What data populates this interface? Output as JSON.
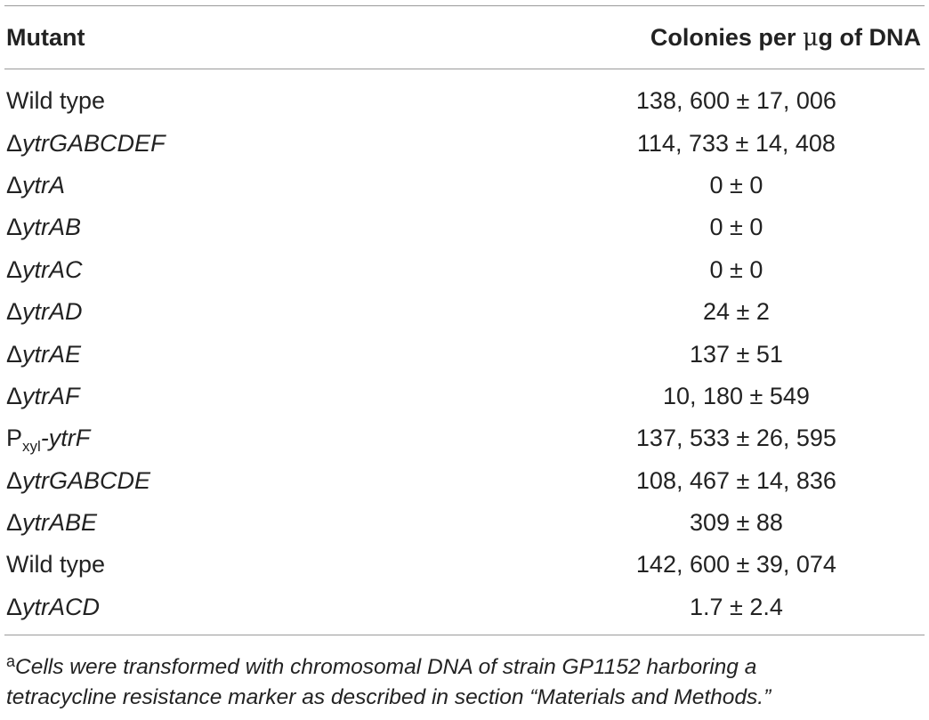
{
  "table": {
    "headers": {
      "mutant": "Mutant",
      "colonies_prefix": "Colonies per ",
      "colonies_mu": "μ",
      "colonies_suffix": "g of DNA"
    },
    "rows": [
      {
        "prefix": "",
        "name": "Wild type",
        "italic": false,
        "value": "138, 600 ± 17, 006"
      },
      {
        "prefix": "Δ",
        "name": "ytrGABCDEF",
        "italic": true,
        "value": "114, 733 ± 14, 408"
      },
      {
        "prefix": "Δ",
        "name": "ytrA",
        "italic": true,
        "value": "0 ± 0"
      },
      {
        "prefix": "Δ",
        "name": "ytrAB",
        "italic": true,
        "value": "0 ± 0"
      },
      {
        "prefix": "Δ",
        "name": "ytrAC",
        "italic": true,
        "value": "0 ± 0"
      },
      {
        "prefix": "Δ",
        "name": "ytrAD",
        "italic": true,
        "value": "24 ± 2"
      },
      {
        "prefix": "Δ",
        "name": "ytrAE",
        "italic": true,
        "value": "137 ± 51"
      },
      {
        "prefix": "Δ",
        "name": "ytrAF",
        "italic": true,
        "value": "10, 180 ± 549"
      },
      {
        "prefix": "P",
        "sub": "xyl",
        "name": "-ytrF",
        "italic": true,
        "value": "137, 533 ± 26, 595"
      },
      {
        "prefix": "Δ",
        "name": "ytrGABCDE",
        "italic": true,
        "value": "108, 467 ± 14, 836"
      },
      {
        "prefix": "Δ",
        "name": "ytrABE",
        "italic": true,
        "value": "309 ± 88"
      },
      {
        "prefix": "",
        "name": "Wild type",
        "italic": false,
        "value": "142, 600 ± 39, 074"
      },
      {
        "prefix": "Δ",
        "name": "ytrACD",
        "italic": true,
        "value": "1.7 ± 2.4"
      }
    ]
  },
  "footnote": {
    "marker": "a",
    "line1": "Cells were transformed with chromosomal DNA of strain GP1152 harboring a",
    "line2": "tetracycline resistance marker as described in section “Materials and Methods.”"
  }
}
